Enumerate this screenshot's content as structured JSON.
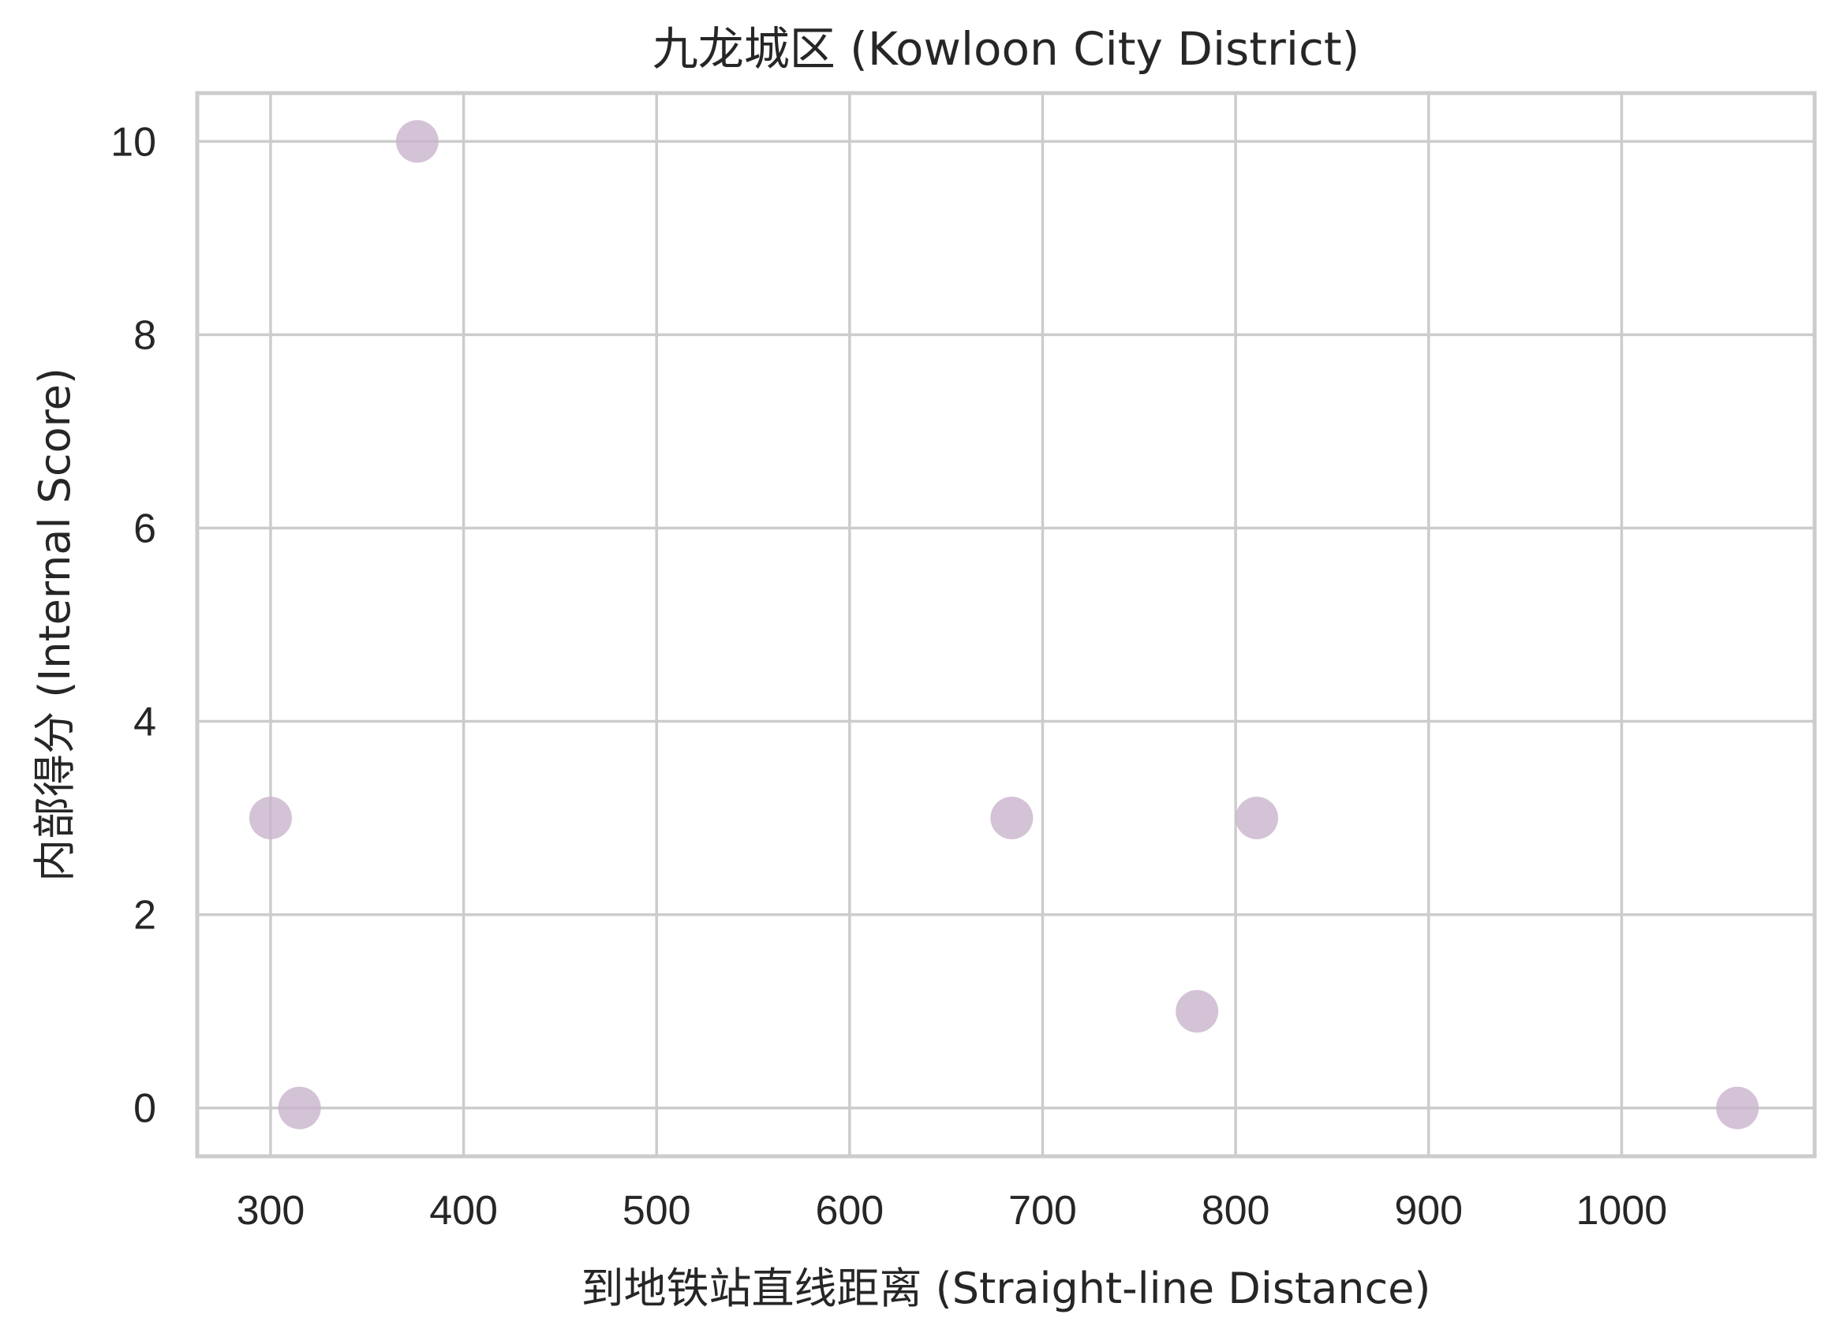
{
  "chart_data": {
    "type": "scatter",
    "title": "九龙城区 (Kowloon City District)",
    "xlabel": "到地铁站直线距离 (Straight-line Distance)",
    "ylabel": "内部得分 (Internal Score)",
    "xlim": [
      262,
      1100
    ],
    "ylim": [
      -0.5,
      10.5
    ],
    "xticks": [
      300,
      400,
      500,
      600,
      700,
      800,
      900,
      1000
    ],
    "yticks": [
      0,
      2,
      4,
      6,
      8,
      10
    ],
    "grid": true,
    "point_color": "#c9b3cc",
    "grid_color": "#cccccc",
    "text_color": "#262626",
    "series": [
      {
        "points": [
          {
            "x": 300,
            "y": 3
          },
          {
            "x": 315,
            "y": 0
          },
          {
            "x": 376,
            "y": 10
          },
          {
            "x": 684,
            "y": 3
          },
          {
            "x": 780,
            "y": 1
          },
          {
            "x": 811,
            "y": 3
          },
          {
            "x": 1060,
            "y": 0
          }
        ]
      }
    ]
  }
}
